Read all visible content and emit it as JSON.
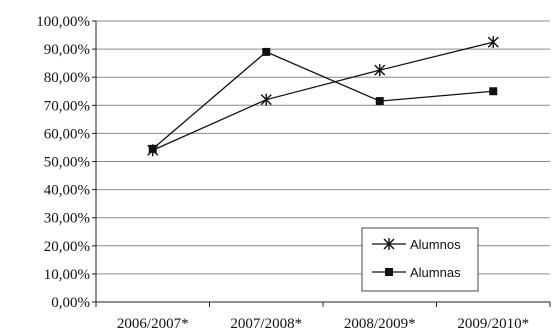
{
  "chart_data": {
    "type": "line",
    "title": "",
    "xlabel": "",
    "ylabel": "",
    "categories": [
      "2006/2007*",
      "2007/2008*",
      "2008/2009*",
      "2009/2010*"
    ],
    "ylim": [
      0,
      100
    ],
    "yticks": [
      "0,00%",
      "10,00%",
      "20,00%",
      "30,00%",
      "40,00%",
      "50,00%",
      "60,00%",
      "70,00%",
      "80,00%",
      "90,00%",
      "100,00%"
    ],
    "grid": true,
    "legend_position": "bottom-right",
    "series": [
      {
        "name": "Alumnos",
        "marker": "star",
        "color": "#111111",
        "values": [
          54,
          72,
          82.5,
          92.5
        ]
      },
      {
        "name": "Alumnas",
        "marker": "square",
        "color": "#111111",
        "values": [
          54.5,
          89,
          71.5,
          75
        ]
      }
    ]
  }
}
